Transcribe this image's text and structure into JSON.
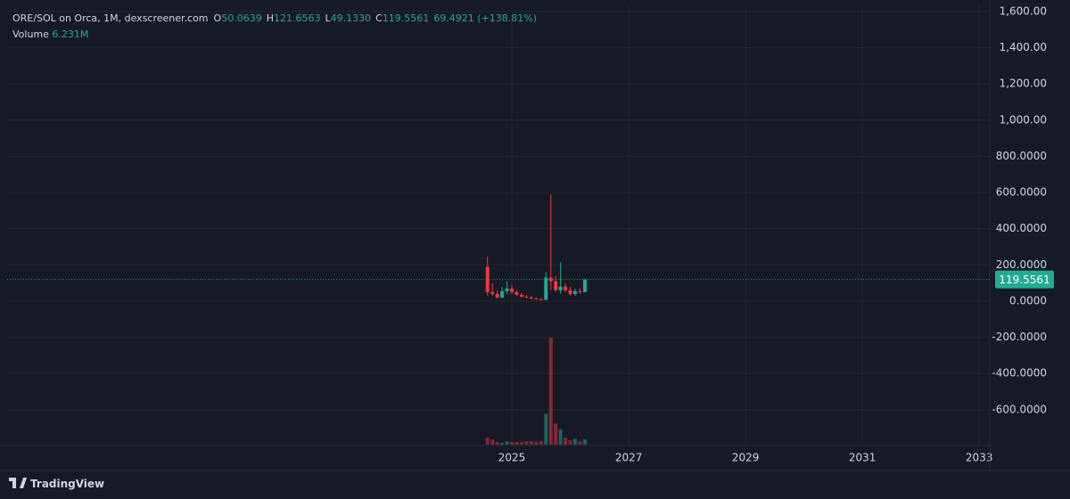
{
  "chart_data": {
    "type": "candlestick",
    "legend": {
      "symbol": "ORE/SOL on Orca, 1M, dexscreener.com",
      "fields": [
        {
          "label": "O",
          "value": "50.0639"
        },
        {
          "label": "H",
          "value": "121.6563"
        },
        {
          "label": "L",
          "value": "49.1330"
        },
        {
          "label": "C",
          "value": "119.5561"
        }
      ],
      "change": "69.4921 (+138.81%)",
      "volume": {
        "label": "Volume",
        "value": "6.231M"
      }
    },
    "x": [
      2024.583,
      2024.667,
      2024.75,
      2024.833,
      2024.917,
      2025.0,
      2025.083,
      2025.167,
      2025.25,
      2025.333,
      2025.417,
      2025.5,
      2025.583,
      2025.667,
      2025.75,
      2025.833,
      2025.917,
      2026.0,
      2026.083,
      2026.167,
      2026.25
    ],
    "open": [
      190,
      50,
      40,
      20,
      55,
      70,
      50,
      35,
      25,
      20,
      15,
      10,
      8,
      130,
      110,
      60,
      80,
      60,
      40,
      55,
      50.0639
    ],
    "high": [
      245,
      100,
      60,
      80,
      110,
      90,
      60,
      45,
      35,
      30,
      20,
      15,
      160,
      590,
      140,
      215,
      100,
      80,
      70,
      70,
      121.6563
    ],
    "low": [
      30,
      30,
      15,
      15,
      40,
      40,
      30,
      20,
      15,
      10,
      8,
      5,
      5,
      60,
      50,
      40,
      50,
      30,
      30,
      40,
      49.133
    ],
    "close": [
      50,
      40,
      20,
      55,
      70,
      50,
      35,
      25,
      20,
      15,
      10,
      8,
      130,
      110,
      60,
      80,
      60,
      40,
      55,
      50,
      119.5561
    ],
    "volume": [
      8,
      6,
      3,
      2,
      4,
      3,
      3,
      3,
      4,
      4,
      3,
      4,
      36,
      125,
      25,
      18,
      8,
      5,
      7,
      4,
      6.231
    ],
    "up_color": "#22ab94",
    "down_color": "#f23645",
    "last_price": 119.5561,
    "xlim": [
      2016.36,
      2033.18
    ],
    "xticks": [
      2025,
      2027,
      2029,
      2031,
      2033
    ],
    "ylim": [
      -797.6,
      1639
    ],
    "yticks": [
      {
        "value": 1600,
        "label": "1,600.00"
      },
      {
        "value": 1400,
        "label": "1,400.00"
      },
      {
        "value": 1200,
        "label": "1,200.00"
      },
      {
        "value": 1000,
        "label": "1,000.00"
      },
      {
        "value": 800,
        "label": "800.0000"
      },
      {
        "value": 600,
        "label": "600.0000"
      },
      {
        "value": 400,
        "label": "400.0000"
      },
      {
        "value": 200,
        "label": "200.0000"
      },
      {
        "value": 0,
        "label": "0.0000"
      },
      {
        "value": -200,
        "label": "-200.0000"
      },
      {
        "value": -400,
        "label": "-400.0000"
      },
      {
        "value": -600,
        "label": "-600.0000"
      }
    ],
    "grid": true,
    "brand": "TradingView"
  }
}
